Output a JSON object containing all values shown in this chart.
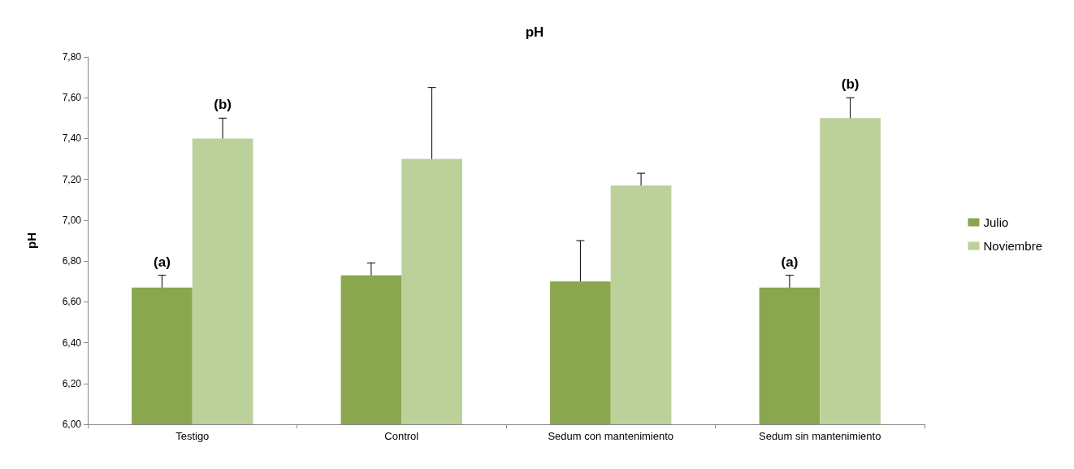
{
  "chart_data": {
    "type": "bar",
    "title": "pH",
    "ylabel": "pH",
    "categories": [
      "Testigo",
      "Control",
      "Sedum con mantenimiento",
      "Sedum sin mantenimiento"
    ],
    "series": [
      {
        "name": "Julio",
        "color": "#8aa64e",
        "values": [
          6.67,
          6.73,
          6.7,
          6.67
        ],
        "errors": [
          [
            6.67,
            6.73
          ],
          [
            6.73,
            6.79
          ],
          [
            6.7,
            6.9
          ],
          [
            6.67,
            6.73
          ]
        ]
      },
      {
        "name": "Noviembre",
        "color": "#bcd09a",
        "values": [
          7.4,
          7.3,
          7.17,
          7.5
        ],
        "errors": [
          [
            7.4,
            7.5
          ],
          [
            7.3,
            7.65
          ],
          [
            7.17,
            7.23
          ],
          [
            7.5,
            7.6
          ]
        ]
      }
    ],
    "ylim": [
      6.0,
      7.8
    ],
    "yticks": [
      {
        "value": 6.0,
        "label": "6,00"
      },
      {
        "value": 6.2,
        "label": "6,20"
      },
      {
        "value": 6.4,
        "label": "6,40"
      },
      {
        "value": 6.6,
        "label": "6,60"
      },
      {
        "value": 6.8,
        "label": "6,80"
      },
      {
        "value": 7.0,
        "label": "7,00"
      },
      {
        "value": 7.2,
        "label": "7,20"
      },
      {
        "value": 7.4,
        "label": "7,40"
      },
      {
        "value": 7.6,
        "label": "7,60"
      },
      {
        "value": 7.8,
        "label": "7,80"
      }
    ],
    "annotations": [
      {
        "text": "(a)",
        "x": "Testigo",
        "y": 6.67
      },
      {
        "text": "(b)",
        "x": "Testigo",
        "y": 7.4
      },
      {
        "text": "(a)",
        "x": "Sedum sin mantenimiento",
        "y": 6.67
      },
      {
        "text": "(b)",
        "x": "Sedum sin mantenimiento",
        "y": 7.5
      }
    ],
    "grid": false,
    "legend": "right"
  }
}
